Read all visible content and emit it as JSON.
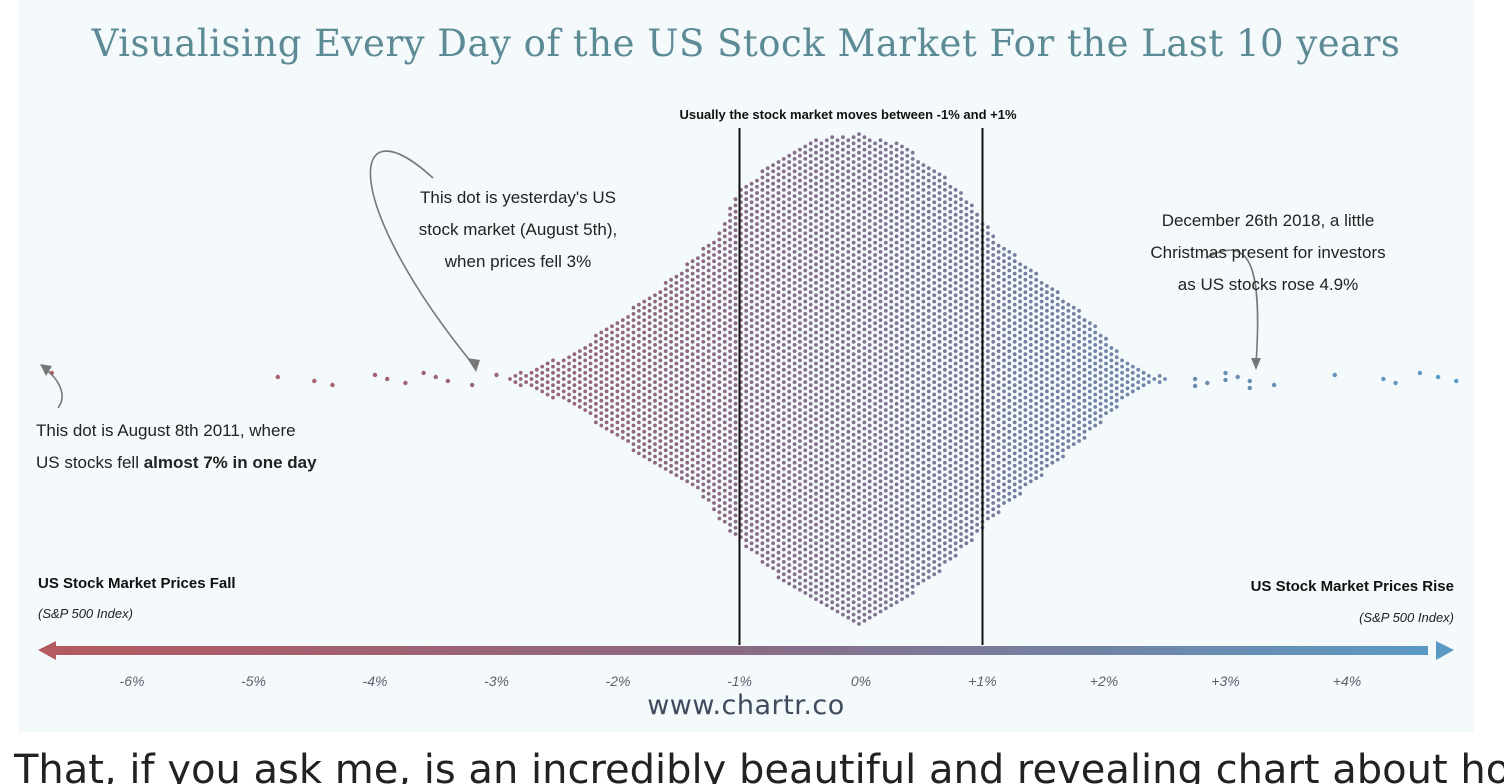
{
  "chart_data": {
    "type": "scatter",
    "subtype": "beeswarm",
    "title": "Visualising Every Day of the US Stock Market For the Last 10 years",
    "x_ticks": [
      "-6%",
      "-5%",
      "-4%",
      "-3%",
      "-2%",
      "-1%",
      "0%",
      "+1%",
      "+2%",
      "+3%",
      "+4%"
    ],
    "x_tick_values": [
      -6,
      -5,
      -4,
      -3,
      -2,
      -1,
      0,
      1,
      2,
      3,
      4
    ],
    "xlim": [
      -6.7,
      5.0
    ],
    "reference_lines": [
      -1,
      1
    ],
    "reference_note": "Usually the stock market moves between -1% and +1%",
    "left_label": "US Stock Market Prices Fall",
    "left_sublabel": "(S&P 500 Index)",
    "right_label": "US Stock Market Prices Rise",
    "right_sublabel": "(S&P 500 Index)",
    "color_scale": [
      "#b45a60",
      "#8a6b85",
      "#5b9ac4"
    ],
    "outliers": [
      -6.66,
      -4.8,
      -4.5,
      -4.35,
      -4.0,
      -3.9,
      -3.75,
      -3.6,
      -3.5,
      -3.4,
      -3.2,
      -3.0,
      2.75,
      2.85,
      3.0,
      3.1,
      3.2,
      3.4,
      3.9,
      4.3,
      4.4,
      4.6,
      4.75,
      4.9
    ],
    "annotations": [
      {
        "id": "aug5",
        "value": -3.0,
        "text_lines": [
          "This dot is yesterday's US",
          "stock market (August 5th),",
          "when prices fell 3%"
        ]
      },
      {
        "id": "aug2011",
        "value": -6.66,
        "text_before": "This dot is August 8th 2011, where",
        "text_line2": "US stocks fell ",
        "text_bold": "almost 7% in one day"
      },
      {
        "id": "dec2018",
        "value": 4.9,
        "text_lines": [
          "December 26th 2018, a little",
          "Christmas present for investors",
          "as US stocks rose 4.9%"
        ]
      }
    ]
  },
  "footer": {
    "url": "www.chartr.co"
  },
  "below_text": "That, if you ask me, is an incredibly beautiful and revealing chart about how the stock"
}
